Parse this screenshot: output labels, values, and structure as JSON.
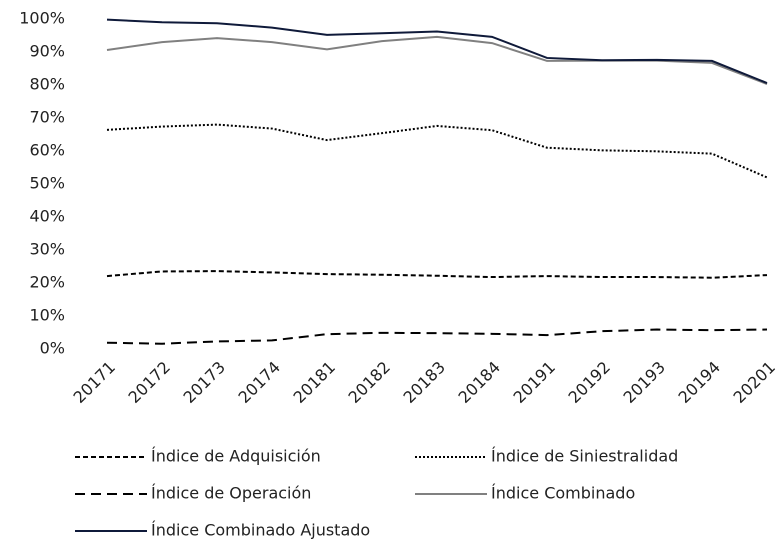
{
  "chart_data": {
    "type": "line",
    "categories": [
      "20171",
      "20172",
      "20173",
      "20174",
      "20181",
      "20182",
      "20183",
      "20184",
      "20191",
      "20192",
      "20193",
      "20194",
      "20201"
    ],
    "series": [
      {
        "name": "Índice de Adquisición",
        "color": "#000000",
        "dash": "short",
        "values": [
          22.1,
          23.5,
          23.6,
          23.2,
          22.7,
          22.5,
          22.2,
          21.8,
          22.1,
          21.8,
          21.8,
          21.6,
          22.4
        ]
      },
      {
        "name": "Índice de Siniestralidad",
        "color": "#000000",
        "dash": "dotted",
        "values": [
          66.4,
          67.4,
          68.0,
          66.8,
          63.3,
          65.4,
          67.6,
          66.3,
          61.0,
          60.2,
          59.9,
          59.2,
          52.0
        ]
      },
      {
        "name": "Índice de Operación",
        "color": "#000000",
        "dash": "long",
        "values": [
          1.9,
          1.6,
          2.3,
          2.6,
          4.5,
          4.9,
          4.8,
          4.6,
          4.2,
          5.4,
          5.9,
          5.7,
          5.9
        ]
      },
      {
        "name": "Índice Combinado",
        "color": "#808080",
        "dash": "solid",
        "values": [
          90.6,
          93.0,
          94.2,
          93.0,
          90.8,
          93.3,
          94.6,
          92.7,
          87.3,
          87.4,
          87.4,
          86.7,
          80.3
        ]
      },
      {
        "name": "Índice Combinado Ajustado",
        "color": "#0f1a3a",
        "dash": "solid",
        "values": [
          99.8,
          99.0,
          98.7,
          97.4,
          95.2,
          95.7,
          96.2,
          94.6,
          88.2,
          87.5,
          87.6,
          87.3,
          80.6
        ]
      }
    ],
    "ylim": [
      0,
      100
    ],
    "yticks": [
      {
        "value": 0,
        "label": "0%"
      },
      {
        "value": 10,
        "label": "10%"
      },
      {
        "value": 20,
        "label": "20%"
      },
      {
        "value": 30,
        "label": "30%"
      },
      {
        "value": 40,
        "label": "40%"
      },
      {
        "value": 50,
        "label": "50%"
      },
      {
        "value": 60,
        "label": "60%"
      },
      {
        "value": 70,
        "label": "70%"
      },
      {
        "value": 80,
        "label": "80%"
      },
      {
        "value": 90,
        "label": "90%"
      },
      {
        "value": 100,
        "label": "100%"
      }
    ],
    "grid": false,
    "legend": "bottom"
  }
}
